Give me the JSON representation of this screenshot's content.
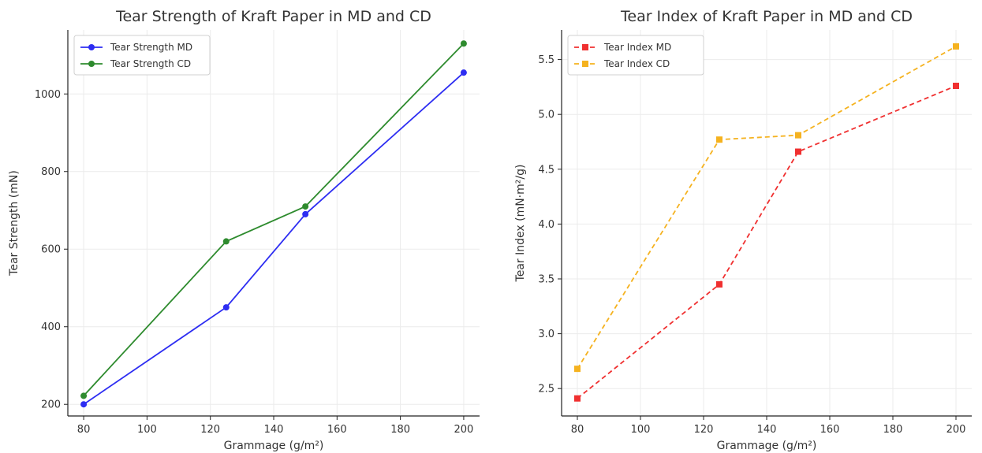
{
  "chart_data": [
    {
      "type": "line",
      "title": "Tear Strength of Kraft Paper in MD and CD",
      "xlabel": "Grammage (g/m²)",
      "ylabel": "Tear Strength (mN)",
      "x": [
        80,
        125,
        150,
        200
      ],
      "xticks": [
        80,
        100,
        120,
        140,
        160,
        180,
        200
      ],
      "yticks": [
        200,
        400,
        600,
        800,
        1000
      ],
      "xlim": [
        75,
        205
      ],
      "ylim": [
        170,
        1165
      ],
      "grid": true,
      "legend_position": "top-left",
      "series": [
        {
          "name": "Tear Strength MD",
          "values": [
            200,
            450,
            690,
            1055
          ],
          "color": "#2d2df2",
          "line_style": "solid",
          "marker": "circle"
        },
        {
          "name": "Tear Strength CD",
          "values": [
            222,
            620,
            710,
            1130
          ],
          "color": "#2e8b2e",
          "line_style": "solid",
          "marker": "circle"
        }
      ]
    },
    {
      "type": "line",
      "title": "Tear Index of Kraft Paper in MD and CD",
      "xlabel": "Grammage (g/m²)",
      "ylabel": "Tear Index (mN·m²/g)",
      "x": [
        80,
        125,
        150,
        200
      ],
      "xticks": [
        80,
        100,
        120,
        140,
        160,
        180,
        200
      ],
      "yticks": [
        2.5,
        3.0,
        3.5,
        4.0,
        4.5,
        5.0,
        5.5
      ],
      "xlim": [
        75,
        205
      ],
      "ylim": [
        2.25,
        5.77
      ],
      "grid": true,
      "legend_position": "top-left",
      "series": [
        {
          "name": "Tear Index MD",
          "values": [
            2.41,
            3.45,
            4.66,
            5.26
          ],
          "color": "#f03030",
          "line_style": "dashed",
          "marker": "square"
        },
        {
          "name": "Tear Index CD",
          "values": [
            2.68,
            4.77,
            4.81,
            5.62
          ],
          "color": "#f5b21f",
          "line_style": "dashed",
          "marker": "square"
        }
      ]
    }
  ]
}
